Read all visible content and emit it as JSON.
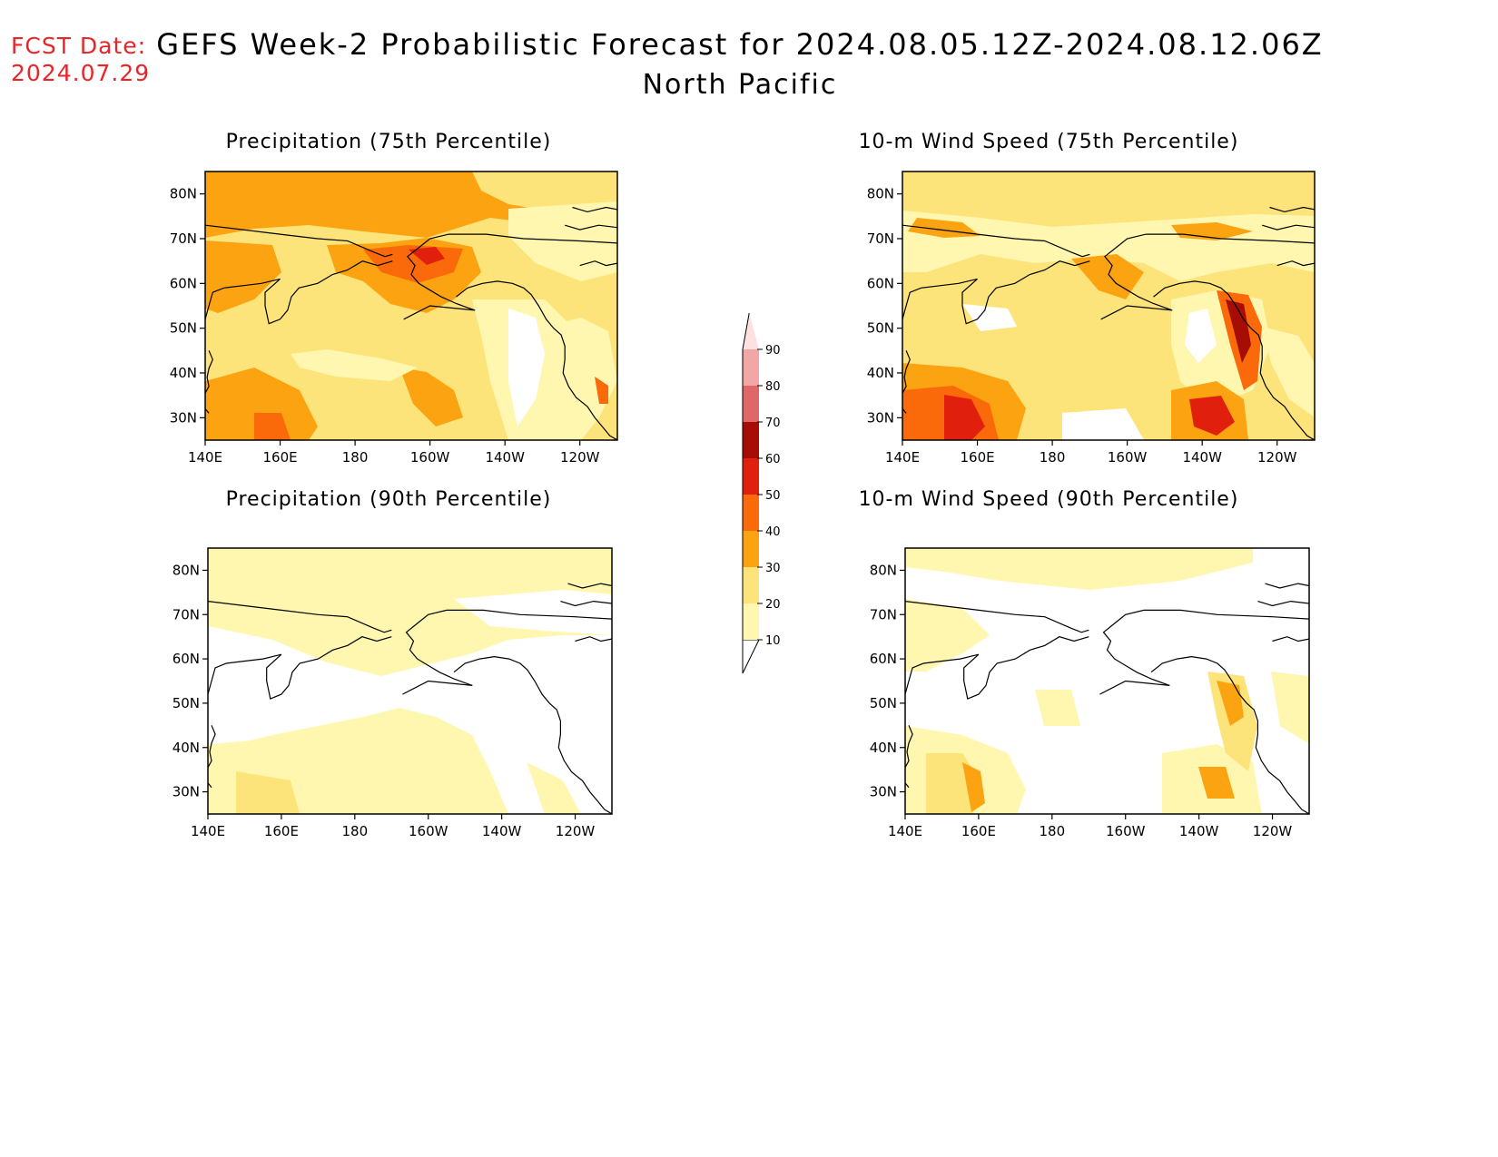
{
  "header": {
    "fcst_label": "FCST Date:",
    "fcst_date": "2024.07.29",
    "title": "GEFS Week-2 Probabilistic Forecast for 2024.08.05.12Z-2024.08.12.06Z",
    "subtitle": "North Pacific"
  },
  "axes": {
    "lon_labels": [
      "140E",
      "160E",
      "180",
      "160W",
      "140W",
      "120W"
    ],
    "lat_labels": [
      "80N",
      "70N",
      "60N",
      "50N",
      "40N",
      "30N"
    ]
  },
  "panels": [
    {
      "id": "precip75",
      "title": "Precipitation (75th Percentile)",
      "intensity": "high"
    },
    {
      "id": "wind75",
      "title": "10-m Wind Speed (75th Percentile)",
      "intensity": "high"
    },
    {
      "id": "precip90",
      "title": "Precipitation (90th Percentile)",
      "intensity": "low"
    },
    {
      "id": "wind90",
      "title": "10-m Wind Speed (90th Percentile)",
      "intensity": "low"
    }
  ],
  "colorbar": {
    "levels": [
      "10",
      "20",
      "30",
      "40",
      "50",
      "60",
      "70",
      "80",
      "90"
    ],
    "colors": [
      "#fff7b0",
      "#fde47a",
      "#fca311",
      "#fb6a0a",
      "#e0200c",
      "#a50d05",
      "#e06767",
      "#f2a6a6",
      "#fde0e0"
    ]
  }
}
